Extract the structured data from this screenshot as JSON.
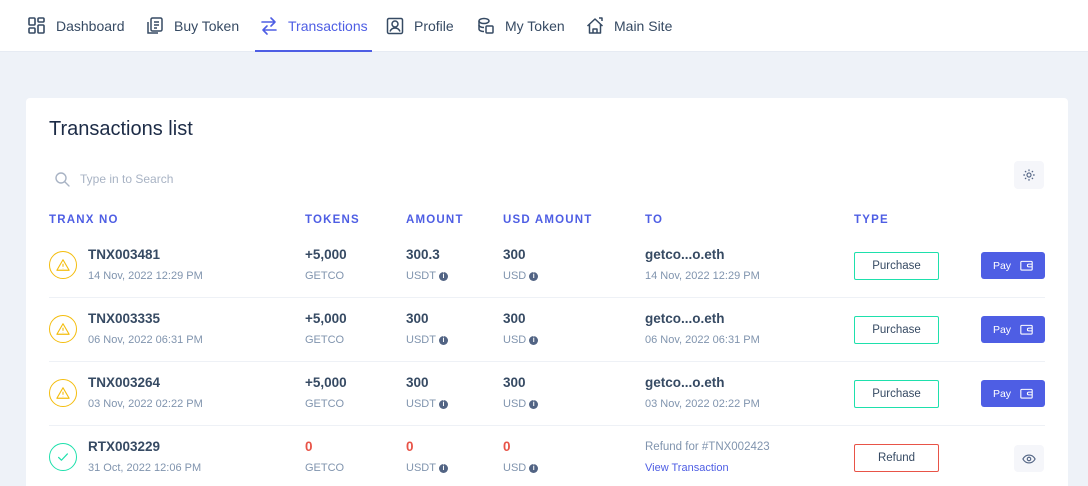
{
  "nav": {
    "items": [
      {
        "label": "Dashboard",
        "icon": "dashboard-icon"
      },
      {
        "label": "Buy Token",
        "icon": "buy-token-icon"
      },
      {
        "label": "Transactions",
        "icon": "transactions-icon",
        "active": true
      },
      {
        "label": "Profile",
        "icon": "profile-icon"
      },
      {
        "label": "My Token",
        "icon": "my-token-icon"
      },
      {
        "label": "Main Site",
        "icon": "main-site-icon"
      }
    ]
  },
  "main": {
    "title": "Transactions list",
    "search_placeholder": "Type in to Search",
    "columns": [
      "TRANX NO",
      "TOKENS",
      "AMOUNT",
      "USD AMOUNT",
      "TO",
      "TYPE"
    ],
    "rows": [
      {
        "status": "pending",
        "tranx_no": "TNX003481",
        "date": "14 Nov, 2022 12:29 PM",
        "tokens": "+5,000",
        "token_sym": "GETCO",
        "amount": "300.3",
        "amount_cur": "USDT",
        "usd_amount": "300",
        "usd_cur": "USD",
        "to": "getco...o.eth",
        "to_date": "14 Nov, 2022 12:29 PM",
        "type": "Purchase",
        "action": "Pay"
      },
      {
        "status": "pending",
        "tranx_no": "TNX003335",
        "date": "06 Nov, 2022 06:31 PM",
        "tokens": "+5,000",
        "token_sym": "GETCO",
        "amount": "300",
        "amount_cur": "USDT",
        "usd_amount": "300",
        "usd_cur": "USD",
        "to": "getco...o.eth",
        "to_date": "06 Nov, 2022 06:31 PM",
        "type": "Purchase",
        "action": "Pay"
      },
      {
        "status": "pending",
        "tranx_no": "TNX003264",
        "date": "03 Nov, 2022 02:22 PM",
        "tokens": "+5,000",
        "token_sym": "GETCO",
        "amount": "300",
        "amount_cur": "USDT",
        "usd_amount": "300",
        "usd_cur": "USD",
        "to": "getco...o.eth",
        "to_date": "03 Nov, 2022 02:22 PM",
        "type": "Purchase",
        "action": "Pay"
      },
      {
        "status": "success",
        "tranx_no": "RTX003229",
        "date": "31 Oct, 2022 12:06 PM",
        "tokens": "0",
        "token_sym": "GETCO",
        "amount": "0",
        "amount_cur": "USDT",
        "usd_amount": "0",
        "usd_cur": "USD",
        "to_text": "Refund for #TNX002423",
        "to_link": "View Transaction",
        "type": "Refund",
        "action": "view"
      }
    ]
  },
  "colors": {
    "accent": "#4e5ee4",
    "success": "#1ee0ac",
    "warning": "#f4bd0e",
    "danger": "#e85347"
  }
}
